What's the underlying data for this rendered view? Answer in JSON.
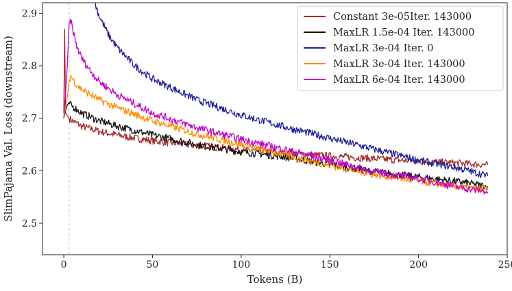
{
  "chart_data": {
    "type": "line",
    "xlabel": "Tokens (B)",
    "ylabel": "SlimPajama Val. Loss (downstream)",
    "xlim": [
      -12,
      250
    ],
    "ylim": [
      2.44,
      2.92
    ],
    "xticks": [
      0,
      50,
      100,
      150,
      200,
      250
    ],
    "yticks": [
      2.5,
      2.6,
      2.7,
      2.8,
      2.9
    ],
    "xtick_labels": [
      "0",
      "50",
      "100",
      "150",
      "200",
      "250"
    ],
    "ytick_labels": [
      "2.5",
      "2.6",
      "2.7",
      "2.8",
      "2.9"
    ],
    "grid": false,
    "legend_position": "top-right",
    "vline": {
      "x": 3,
      "style": "dashed",
      "color": "#cccccc"
    },
    "series": [
      {
        "name": "Constant 3e-05Iter. 143000",
        "color": "#a52a2a",
        "x": [
          0,
          0.5,
          1,
          2,
          3,
          5,
          10,
          20,
          30,
          40,
          50,
          75,
          100,
          125,
          150,
          175,
          200,
          225,
          239
        ],
        "values": [
          2.71,
          2.87,
          2.71,
          2.705,
          2.7,
          2.695,
          2.685,
          2.675,
          2.668,
          2.662,
          2.657,
          2.648,
          2.64,
          2.634,
          2.628,
          2.623,
          2.618,
          2.614,
          2.611
        ]
      },
      {
        "name": "MaxLR 1.5e-04 Iter. 143000",
        "color": "#111111",
        "x": [
          0,
          1,
          2,
          3,
          4,
          6,
          10,
          20,
          30,
          50,
          75,
          100,
          125,
          150,
          175,
          200,
          225,
          239
        ],
        "values": [
          2.7,
          2.715,
          2.725,
          2.73,
          2.725,
          2.72,
          2.71,
          2.695,
          2.685,
          2.668,
          2.65,
          2.636,
          2.626,
          2.612,
          2.598,
          2.588,
          2.578,
          2.57
        ]
      },
      {
        "name": "MaxLR 3e-04 Iter. 0",
        "color": "#1f1f99",
        "x": [
          17.5,
          20,
          25,
          30,
          40,
          50,
          75,
          100,
          125,
          150,
          175,
          200,
          225,
          239
        ],
        "values": [
          2.92,
          2.895,
          2.86,
          2.835,
          2.8,
          2.775,
          2.735,
          2.706,
          2.683,
          2.662,
          2.641,
          2.62,
          2.603,
          2.59
        ]
      },
      {
        "name": "MaxLR 3e-04 Iter. 143000",
        "color": "#ff8c00",
        "x": [
          0,
          2,
          3,
          4,
          5,
          7,
          10,
          20,
          30,
          50,
          75,
          100,
          125,
          150,
          175,
          200,
          225,
          239
        ],
        "values": [
          2.7,
          2.74,
          2.77,
          2.78,
          2.775,
          2.765,
          2.755,
          2.735,
          2.72,
          2.695,
          2.67,
          2.65,
          2.63,
          2.61,
          2.593,
          2.58,
          2.568,
          2.563
        ]
      },
      {
        "name": "MaxLR 6e-04 Iter. 143000",
        "color": "#c000d0",
        "x": [
          0,
          2,
          3,
          4,
          5,
          7,
          10,
          15,
          20,
          30,
          50,
          75,
          100,
          125,
          150,
          175,
          200,
          225,
          239
        ],
        "values": [
          2.7,
          2.8,
          2.88,
          2.885,
          2.87,
          2.84,
          2.815,
          2.79,
          2.77,
          2.745,
          2.71,
          2.682,
          2.66,
          2.64,
          2.62,
          2.598,
          2.585,
          2.567,
          2.56
        ]
      }
    ]
  }
}
